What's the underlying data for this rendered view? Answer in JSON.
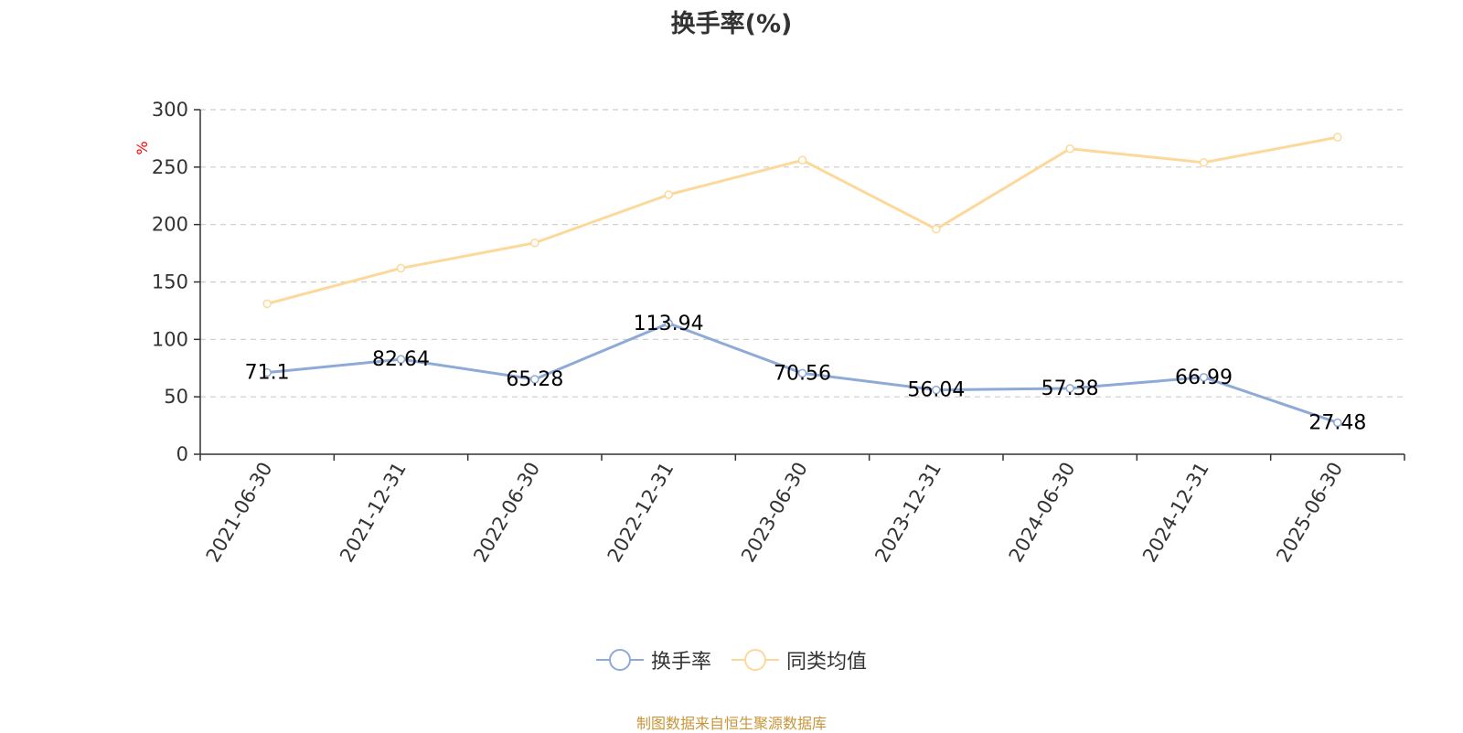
{
  "title": "换手率(%)",
  "source_note": "制图数据来自恒生聚源数据库",
  "legend": [
    {
      "label": "换手率",
      "color": "#8eaad8"
    },
    {
      "label": "同类均值",
      "color": "#fcd99b"
    }
  ],
  "chart_data": {
    "type": "line",
    "title": "换手率(%)",
    "ylabel": "%",
    "ylabel_color": "#ff0000",
    "ylim": [
      0,
      300
    ],
    "yticks": [
      "0",
      "50",
      "100",
      "150",
      "200",
      "250",
      "300"
    ],
    "grid": true,
    "legend_position": "bottom",
    "categories": [
      "2021-06-30",
      "2021-12-31",
      "2022-06-30",
      "2022-12-31",
      "2023-06-30",
      "2023-12-31",
      "2024-06-30",
      "2024-12-31",
      "2025-06-30"
    ],
    "series": [
      {
        "name": "换手率",
        "color": "#8eaad8",
        "values": [
          71.1,
          82.64,
          65.28,
          113.94,
          70.56,
          56.04,
          57.38,
          66.99,
          27.48
        ],
        "labels": [
          "71.1",
          "82.64",
          "65.28",
          "113.94",
          "70.56",
          "56.04",
          "57.38",
          "66.99",
          "27.48"
        ]
      },
      {
        "name": "同类均值",
        "color": "#fcd99b",
        "values": [
          131,
          162,
          184,
          226,
          256,
          196,
          266,
          254,
          276
        ]
      }
    ]
  }
}
